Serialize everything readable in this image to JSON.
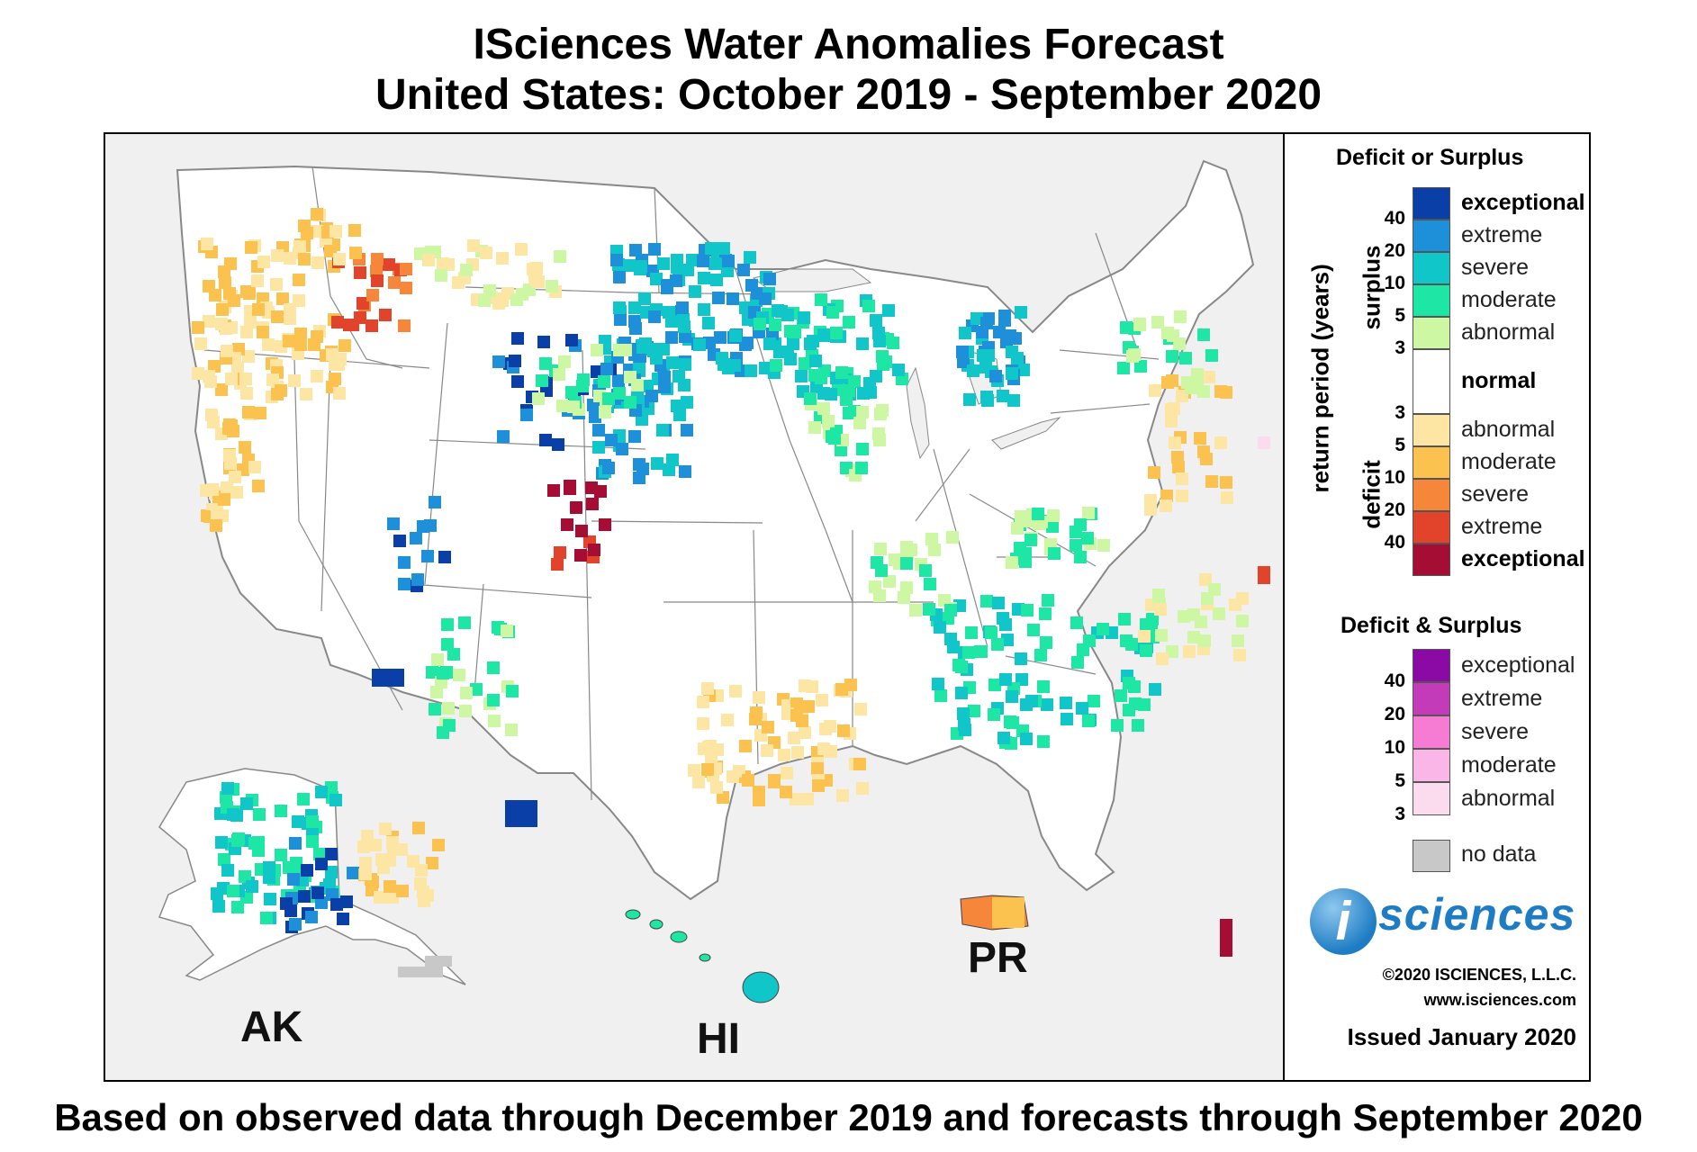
{
  "title": {
    "line1": "ISciences Water Anomalies Forecast",
    "line2": "United States: October 2019 - September 2020"
  },
  "caption": "Based on observed data through December 2019 and forecasts through September 2020",
  "map": {
    "background": "#f0f0f0",
    "land_color": "#ffffff",
    "border_color": "#888888",
    "region_labels": {
      "ak": "AK",
      "hi": "HI",
      "pr": "PR"
    },
    "anomaly_classes": [
      "surplus-exceptional",
      "surplus-extreme",
      "surplus-severe",
      "surplus-moderate",
      "surplus-abnormal",
      "deficit-abnormal",
      "deficit-moderate",
      "deficit-severe",
      "deficit-extreme",
      "deficit-exceptional",
      "both-abnormal",
      "no-data"
    ]
  },
  "legend": {
    "deficit_surplus": {
      "heading": "Deficit or Surplus",
      "axis_label": "return period (years)",
      "surplus_label": "surplus",
      "deficit_label": "deficit",
      "surplus": [
        {
          "label": "exceptional",
          "color": "#0a3fa8",
          "bold": true
        },
        {
          "label": "extreme",
          "color": "#1e8fd9"
        },
        {
          "label": "severe",
          "color": "#10c6c9"
        },
        {
          "label": "moderate",
          "color": "#1ee6a4"
        },
        {
          "label": "abnormal",
          "color": "#cdf7a3"
        }
      ],
      "normal": {
        "label": "normal",
        "color": "#ffffff"
      },
      "deficit": [
        {
          "label": "abnormal",
          "color": "#fde5a4"
        },
        {
          "label": "moderate",
          "color": "#fcc24f"
        },
        {
          "label": "severe",
          "color": "#f6873a"
        },
        {
          "label": "extreme",
          "color": "#e1432b"
        },
        {
          "label": "exceptional",
          "color": "#a50d35",
          "bold": true
        }
      ],
      "surplus_ticks": [
        "40",
        "20",
        "10",
        "5",
        "3"
      ],
      "deficit_ticks": [
        "3",
        "5",
        "10",
        "20",
        "40"
      ]
    },
    "both": {
      "heading": "Deficit & Surplus",
      "classes": [
        {
          "label": "exceptional",
          "color": "#8b0aa5"
        },
        {
          "label": "extreme",
          "color": "#c43bb9"
        },
        {
          "label": "severe",
          "color": "#f57bd3"
        },
        {
          "label": "moderate",
          "color": "#f9b6e7"
        },
        {
          "label": "abnormal",
          "color": "#fbdcef"
        }
      ],
      "ticks": [
        "40",
        "20",
        "10",
        "5",
        "3"
      ]
    },
    "no_data": {
      "label": "no data",
      "color": "#c8c8c8"
    },
    "logo_mark": "i",
    "logo_text": "sciences",
    "copyright": "©2020 ISCIENCES, L.L.C.",
    "website": "www.isciences.com",
    "issued": "Issued January 2020"
  }
}
